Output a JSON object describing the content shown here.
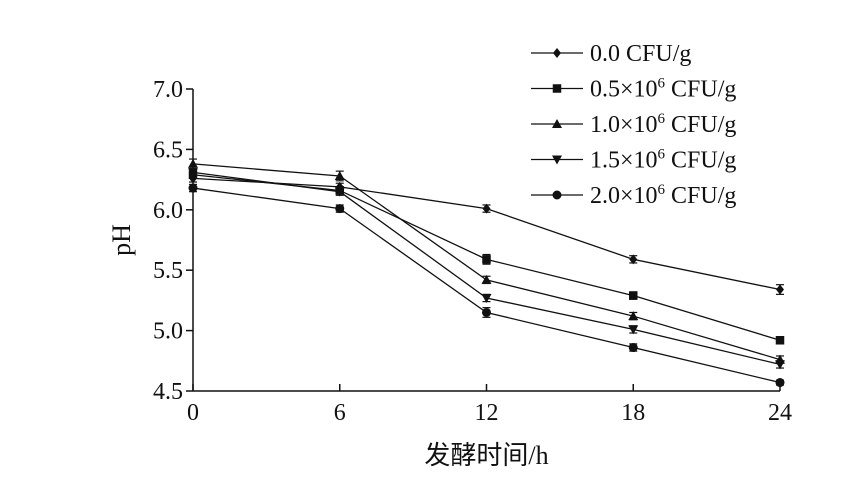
{
  "chart_data": {
    "type": "line",
    "title": "",
    "xlabel": "发酵时间/h",
    "ylabel": "pH",
    "x": [
      0,
      6,
      12,
      18,
      24
    ],
    "x_ticks": [
      "0",
      "6",
      "12",
      "18",
      "24"
    ],
    "xlim": [
      0,
      24
    ],
    "y_ticks": [
      "4.5",
      "5.0",
      "5.5",
      "6.0",
      "6.5",
      "7.0"
    ],
    "ylim": [
      4.5,
      7.0
    ],
    "grid": false,
    "legend_position": "top-right",
    "series": [
      {
        "name": "0.0 CFU/g",
        "name_base": "0.0 CFU/g",
        "name_sup": "",
        "name_tail": "",
        "marker": "diamond",
        "values": [
          6.26,
          6.19,
          6.01,
          5.59,
          5.34
        ],
        "errors": [
          0.03,
          0.03,
          0.03,
          0.03,
          0.04
        ]
      },
      {
        "name": "0.5×10^6 CFU/g",
        "name_base": "0.5×10",
        "name_sup": "6",
        "name_tail": " CFU/g",
        "marker": "square",
        "values": [
          6.29,
          6.16,
          5.59,
          5.29,
          4.92
        ],
        "errors": [
          0.03,
          0.03,
          0.04,
          0.03,
          0.03
        ]
      },
      {
        "name": "1.0×10^6 CFU/g",
        "name_base": "1.0×10",
        "name_sup": "6",
        "name_tail": " CFU/g",
        "marker": "triangle-up",
        "values": [
          6.38,
          6.28,
          5.42,
          5.12,
          4.76
        ],
        "errors": [
          0.04,
          0.04,
          0.03,
          0.03,
          0.03
        ]
      },
      {
        "name": "1.5×10^6 CFU/g",
        "name_base": "1.5×10",
        "name_sup": "6",
        "name_tail": " CFU/g",
        "marker": "triangle-down",
        "values": [
          6.31,
          6.15,
          5.27,
          5.01,
          4.72
        ],
        "errors": [
          0.03,
          0.03,
          0.03,
          0.03,
          0.03
        ]
      },
      {
        "name": "2.0×10^6 CFU/g",
        "name_base": "2.0×10",
        "name_sup": "6",
        "name_tail": " CFU/g",
        "marker": "circle",
        "values": [
          6.18,
          6.01,
          5.15,
          4.86,
          4.57
        ],
        "errors": [
          0.03,
          0.03,
          0.04,
          0.03,
          0.02
        ]
      }
    ],
    "colors": {
      "line": "#111111",
      "marker": "#111111"
    }
  }
}
